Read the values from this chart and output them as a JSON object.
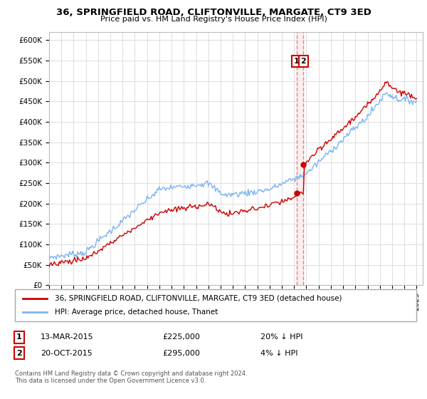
{
  "title": "36, SPRINGFIELD ROAD, CLIFTONVILLE, MARGATE, CT9 3ED",
  "subtitle": "Price paid vs. HM Land Registry's House Price Index (HPI)",
  "yticks": [
    0,
    50000,
    100000,
    150000,
    200000,
    250000,
    300000,
    350000,
    400000,
    450000,
    500000,
    550000,
    600000
  ],
  "ytick_labels": [
    "£0",
    "£50K",
    "£100K",
    "£150K",
    "£200K",
    "£250K",
    "£300K",
    "£350K",
    "£400K",
    "£450K",
    "£500K",
    "£550K",
    "£600K"
  ],
  "xmin": 1995,
  "xmax": 2025.5,
  "ymin": 0,
  "ymax": 620000,
  "hpi_color": "#7ab4f5",
  "price_color": "#cc0000",
  "vline_color": "#e88080",
  "vshade_color": "#fce8e8",
  "grid_color": "#dddddd",
  "background_color": "#ffffff",
  "annotation_box_edge": "#cc0000",
  "transaction1_date": "13-MAR-2015",
  "transaction1_price": "£225,000",
  "transaction1_hpi": "20% ↓ HPI",
  "transaction2_date": "20-OCT-2015",
  "transaction2_price": "£295,000",
  "transaction2_hpi": "4% ↓ HPI",
  "footer": "Contains HM Land Registry data © Crown copyright and database right 2024.\nThis data is licensed under the Open Government Licence v3.0.",
  "legend_line1": "36, SPRINGFIELD ROAD, CLIFTONVILLE, MARGATE, CT9 3ED (detached house)",
  "legend_line2": "HPI: Average price, detached house, Thanet",
  "vx1": 2015.2,
  "vx2": 2015.75,
  "marker1_y": 225000,
  "marker2_y": 295000,
  "ann_y": 548000
}
